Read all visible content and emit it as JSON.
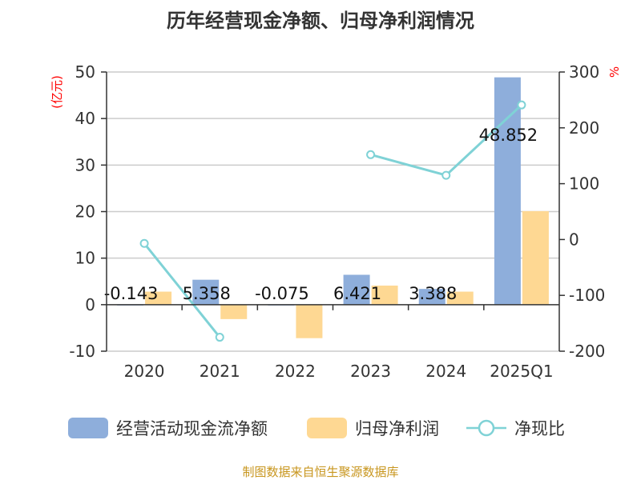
{
  "chart_data": {
    "type": "bar",
    "title": "历年经营现金净额、归母净利润情况",
    "categories": [
      "2020",
      "2021",
      "2022",
      "2023",
      "2024",
      "2025Q1"
    ],
    "ylabel_left": "(亿元)",
    "ylabel_right": "%",
    "ylim_left": [
      -10,
      50
    ],
    "ylim_right": [
      -200,
      300
    ],
    "yticks_left": [
      "-10",
      "0",
      "10",
      "20",
      "30",
      "40",
      "50"
    ],
    "yticks_right": [
      "-200",
      "-100",
      "0",
      "100",
      "200",
      "300"
    ],
    "grid": true,
    "legend_position": "bottom",
    "series": [
      {
        "name": "经营活动现金流净额",
        "type": "bar",
        "axis": "left",
        "color": "#8eaedb",
        "values": [
          -0.143,
          5.358,
          -0.075,
          6.421,
          3.388,
          48.852
        ],
        "labels": [
          "-0.143",
          "5.358",
          "-0.075",
          "6.421",
          "3.388",
          "48.852"
        ]
      },
      {
        "name": "归母净利润",
        "type": "bar",
        "axis": "left",
        "color": "#fed893",
        "values": [
          2.8,
          -3.1,
          -7.2,
          4.1,
          2.8,
          20.1
        ]
      },
      {
        "name": "净现比",
        "type": "line",
        "axis": "right",
        "color": "#7fd2d6",
        "values": [
          -7,
          -175,
          null,
          152,
          115,
          241
        ]
      }
    ]
  },
  "source": "制图数据来自恒生聚源数据库"
}
